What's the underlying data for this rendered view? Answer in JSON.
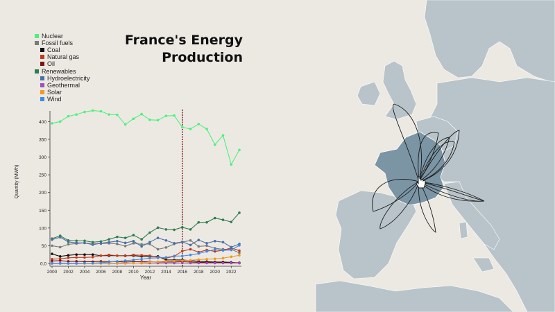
{
  "title_line1": "France's Energy",
  "title_line2": "Production",
  "legend": [
    {
      "label": "Nuclear",
      "color": "#4ef07c",
      "level": 0
    },
    {
      "label": "Fossil fuels",
      "color": "#7a7a7a",
      "level": 0
    },
    {
      "label": "Coal",
      "color": "#111111",
      "level": 1
    },
    {
      "label": "Natural gas",
      "color": "#c23a1e",
      "level": 1
    },
    {
      "label": "Oil",
      "color": "#7a1414",
      "level": 1
    },
    {
      "label": "Renewables",
      "color": "#2e7d4f",
      "level": 0
    },
    {
      "label": "Hydroelectricity",
      "color": "#4a6fa8",
      "level": 1
    },
    {
      "label": "Geothermal",
      "color": "#9b4fc0",
      "level": 1
    },
    {
      "label": "Solar",
      "color": "#f29a1c",
      "level": 1
    },
    {
      "label": "Wind",
      "color": "#3b8bea",
      "level": 1
    }
  ],
  "chart_data": {
    "type": "line",
    "xlabel": "Year",
    "ylabel": "Quantity (MWh)",
    "x": [
      2000,
      2001,
      2002,
      2003,
      2004,
      2005,
      2006,
      2007,
      2008,
      2009,
      2010,
      2011,
      2012,
      2013,
      2014,
      2015,
      2016,
      2017,
      2018,
      2019,
      2020,
      2021,
      2022,
      2023
    ],
    "xticks": [
      "2000",
      "2002",
      "2004",
      "2006",
      "2008",
      "2010",
      "2012",
      "2014",
      "2016",
      "2018",
      "2020",
      "2022"
    ],
    "yticks": [
      "0.0",
      "50",
      "100",
      "150",
      "200",
      "250",
      "300",
      "350",
      "400"
    ],
    "ylim": [
      0,
      430
    ],
    "marker_year": 2016,
    "series": [
      {
        "name": "Nuclear",
        "color": "#4ef07c",
        "values": [
          395,
          400,
          415,
          420,
          427,
          431,
          429,
          420,
          419,
          392,
          408,
          421,
          405,
          404,
          416,
          417,
          384,
          379,
          393,
          379,
          335,
          361,
          279,
          320
        ]
      },
      {
        "name": "Fossil fuels",
        "color": "#7a7a7a",
        "values": [
          50,
          46,
          54,
          56,
          58,
          55,
          56,
          57,
          55,
          49,
          57,
          54,
          55,
          40,
          45,
          55,
          60,
          65,
          48,
          50,
          43,
          40,
          40,
          30
        ]
      },
      {
        "name": "Coal",
        "color": "#111111",
        "values": [
          27,
          20,
          23,
          25,
          25,
          25,
          22,
          22,
          22,
          22,
          22,
          20,
          20,
          20,
          10,
          10,
          10,
          8,
          6,
          5,
          4,
          4,
          3,
          1
        ]
      },
      {
        "name": "Natural gas",
        "color": "#c23a1e",
        "values": [
          12,
          13,
          16,
          17,
          17,
          18,
          22,
          24,
          22,
          21,
          24,
          23,
          22,
          18,
          15,
          20,
          35,
          40,
          32,
          38,
          34,
          37,
          44,
          36
        ]
      },
      {
        "name": "Oil",
        "color": "#7a1414",
        "values": [
          7,
          8,
          6,
          6,
          5,
          5,
          6,
          5,
          5,
          4,
          5,
          5,
          5,
          4,
          4,
          4,
          5,
          4,
          3,
          3,
          3,
          2,
          2,
          2
        ]
      },
      {
        "name": "Renewables",
        "color": "#2e7d4f",
        "values": [
          70,
          78,
          65,
          64,
          64,
          60,
          62,
          68,
          75,
          72,
          80,
          68,
          87,
          101,
          96,
          95,
          102,
          96,
          116,
          116,
          128,
          123,
          117,
          143
        ]
      },
      {
        "name": "Hydroelectricity",
        "color": "#4a6fa8",
        "values": [
          67,
          74,
          61,
          58,
          58,
          53,
          57,
          60,
          63,
          58,
          63,
          48,
          60,
          72,
          65,
          57,
          61,
          52,
          66,
          57,
          63,
          60,
          46,
          55
        ]
      },
      {
        "name": "Geothermal",
        "color": "#9b4fc0",
        "values": [
          1,
          1,
          1,
          1,
          1,
          1,
          1,
          1,
          1,
          1,
          1,
          1,
          1,
          1,
          1,
          1,
          1,
          1,
          1,
          1,
          1,
          1,
          1,
          1
        ]
      },
      {
        "name": "Solar",
        "color": "#f29a1c",
        "values": [
          0,
          0,
          0,
          0,
          0,
          0,
          0,
          0,
          0,
          0,
          1,
          2,
          4,
          5,
          6,
          7,
          8,
          9,
          11,
          12,
          13,
          15,
          19,
          23
        ]
      },
      {
        "name": "Wind",
        "color": "#3b8bea",
        "values": [
          0,
          0,
          0,
          0,
          1,
          1,
          2,
          4,
          6,
          8,
          10,
          12,
          15,
          16,
          17,
          21,
          21,
          24,
          28,
          34,
          39,
          37,
          38,
          51
        ]
      }
    ]
  }
}
